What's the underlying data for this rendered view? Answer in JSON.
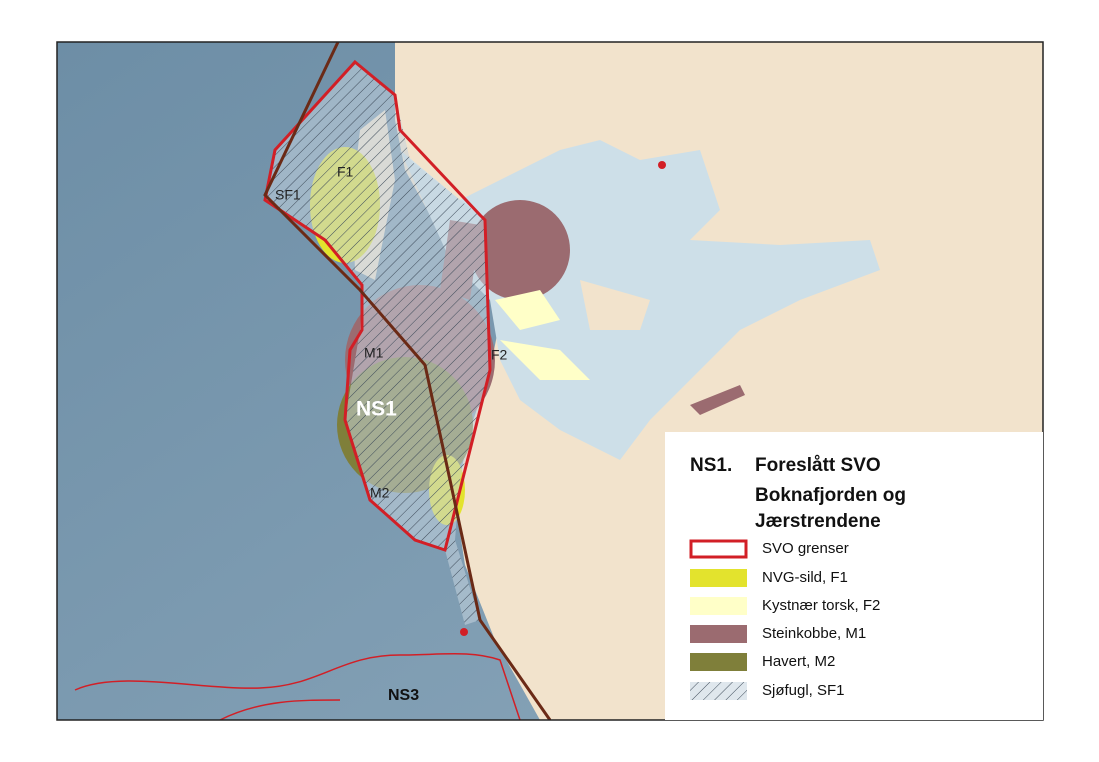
{
  "map": {
    "labels": [
      "SF1",
      "F1",
      "M1",
      "F2",
      "NS1",
      "M2",
      "NS3"
    ]
  },
  "legend": {
    "code": "NS1.",
    "title": [
      "Foreslått SVO",
      "Boknafjorden og",
      "Jærstrendene"
    ],
    "items": [
      "SVO grenser",
      "NVG-sild, F1",
      "Kystnær torsk, F2",
      "Steinkobbe, M1",
      "Havert, M2",
      "Sjøfugl, SF1"
    ]
  }
}
